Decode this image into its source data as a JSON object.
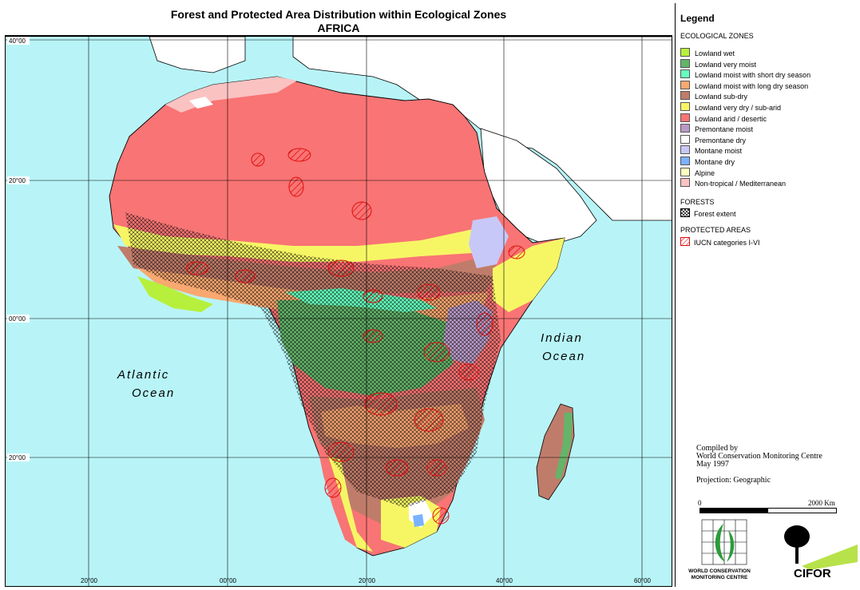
{
  "title": {
    "line1": "Forest and Protected Area Distribution within Ecological Zones",
    "line2": "AFRICA"
  },
  "map": {
    "oceans": [
      "Atlantic",
      "Ocean",
      "Indian",
      "Ocean"
    ],
    "lat_ticks": [
      "40°00",
      "20°00",
      "00°00",
      "20°00"
    ],
    "lon_ticks": [
      "20°00",
      "00°00",
      "20°00",
      "40°00",
      "60°00"
    ]
  },
  "legend": {
    "title": "Legend",
    "ecological_zones_heading": "ECOLOGICAL ZONES",
    "zones": [
      {
        "label": "Lowland wet",
        "color": "#b6f03c"
      },
      {
        "label": "Lowland very moist",
        "color": "#64b46a"
      },
      {
        "label": "Lowland moist with short dry season",
        "color": "#66ffbe"
      },
      {
        "label": "Lowland moist with long dry season",
        "color": "#f9a870"
      },
      {
        "label": "Lowland sub-dry",
        "color": "#c07c6a"
      },
      {
        "label": "Lowland very dry / sub-arid",
        "color": "#f6f665"
      },
      {
        "label": "Lowland arid / desertic",
        "color": "#f97474"
      },
      {
        "label": "Premontane moist",
        "color": "#b89ac6"
      },
      {
        "label": "Premontane dry",
        "color": "#ffffff"
      },
      {
        "label": "Montane moist",
        "color": "#c8c8f8"
      },
      {
        "label": "Montane dry",
        "color": "#7ab2ff"
      },
      {
        "label": "Alpine",
        "color": "#ffffc0"
      },
      {
        "label": "Non-tropical / Mediterranean",
        "color": "#fbc2c2"
      }
    ],
    "forests_heading": "FORESTS",
    "forest_label": "Forest extent",
    "protected_heading": "PROTECTED AREAS",
    "protected_label": "IUCN categories I-VI"
  },
  "credits": {
    "compiled_by": "Compiled by",
    "organisation": "World Conservation Monitoring Centre",
    "date": "May 1997",
    "projection": "Projection: Geographic"
  },
  "scale": {
    "start": "0",
    "end": "2000 Km"
  },
  "logos": {
    "wcmc_line1": "WORLD CONSERVATION",
    "wcmc_line2": "MONITORING CENTRE",
    "cifor": "CIFOR"
  }
}
